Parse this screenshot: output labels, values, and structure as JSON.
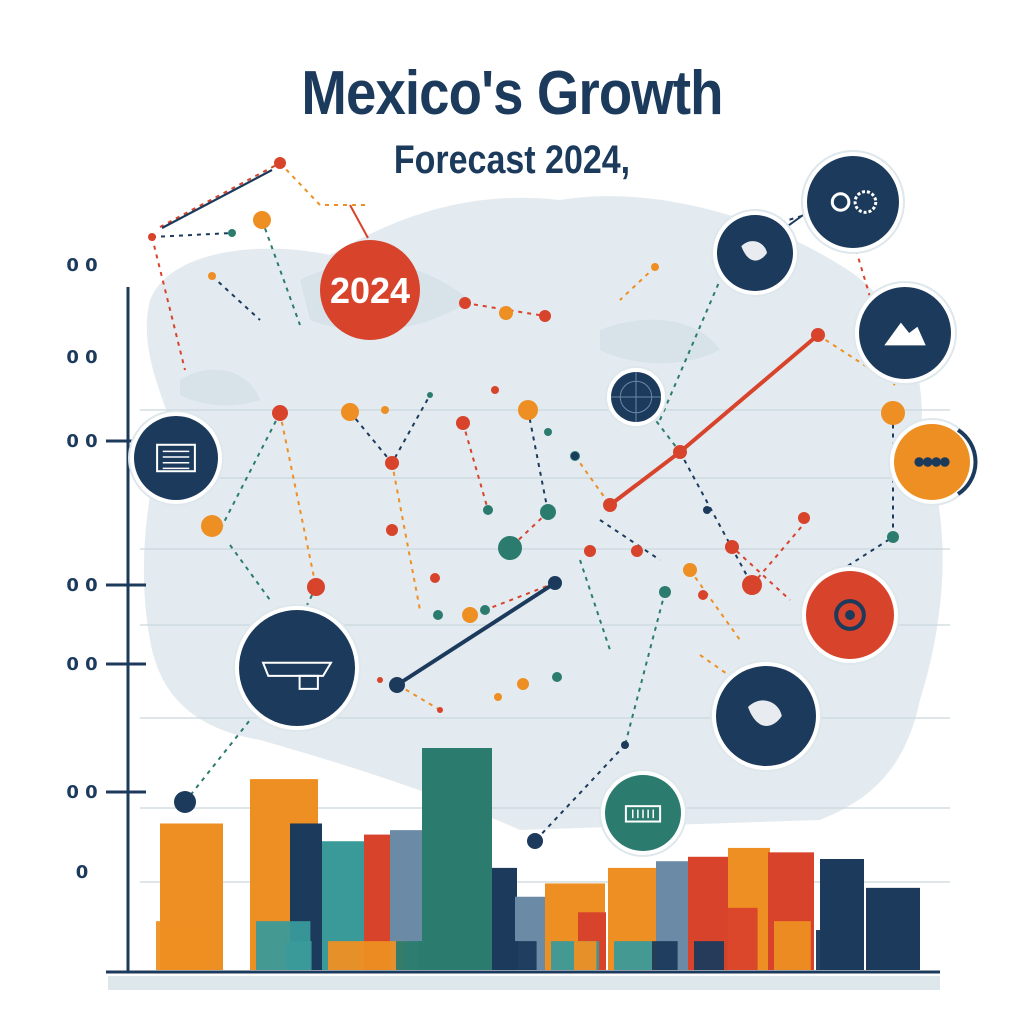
{
  "header": {
    "title": "Mexico's Growth",
    "subtitle": "Forecast 2024,"
  },
  "badge": {
    "label": "2024",
    "color": "#d8432b"
  },
  "colors": {
    "navy": "#1c3a5c",
    "orange": "#ee8f23",
    "red": "#d8432b",
    "teal": "#2b7c6e",
    "aqua": "#3a9a9a",
    "steel": "#6a8aa6",
    "map": "#dfe9ee"
  },
  "icons": [
    {
      "name": "document-icon",
      "fill": "#1c3a5c"
    },
    {
      "name": "aircraft-icon",
      "fill": "#1c3a5c"
    },
    {
      "name": "globe-americas-icon",
      "fill": "#1c3a5c"
    },
    {
      "name": "gears-icon",
      "fill": "#1c3a5c"
    },
    {
      "name": "mountain-chart-icon",
      "fill": "#1c3a5c"
    },
    {
      "name": "people-group-icon",
      "fill": "#ee8f23"
    },
    {
      "name": "target-icon",
      "fill": "#d8432b"
    },
    {
      "name": "world-map-icon",
      "fill": "#1c3a5c"
    },
    {
      "name": "factory-icon",
      "fill": "#2b7c6e"
    },
    {
      "name": "globe-grid-icon",
      "fill": "#1c3a5c"
    }
  ],
  "chart_data": {
    "type": "bar",
    "title": "Mexico's Growth",
    "subtitle": "Forecast 2024,",
    "xlabel": "",
    "ylabel": "",
    "y_tick_labels": [
      "0",
      "0 0",
      "0 0",
      "0 0",
      "0 0",
      "0 0",
      "0 0"
    ],
    "ylim": [
      0,
      100
    ],
    "grid": true,
    "legend": "none",
    "values": [
      66,
      86,
      66,
      58,
      61,
      63,
      100,
      46,
      33,
      39,
      26,
      46,
      49,
      51,
      55,
      53,
      50,
      37
    ],
    "bar_colors": [
      "#ee8f23",
      "#ee8f23",
      "#1c3a5c",
      "#3a9a9a",
      "#d8432b",
      "#6a8aa6",
      "#2b7c6e",
      "#1c3a5c",
      "#6a8aa6",
      "#ee8f23",
      "#d8432b",
      "#ee8f23",
      "#6a8aa6",
      "#d8432b",
      "#ee8f23",
      "#d8432b",
      "#1c3a5c",
      "#1c3a5c"
    ],
    "front_values": [
      22,
      22,
      13,
      13,
      13,
      13,
      13,
      13,
      13,
      13,
      13,
      13,
      13,
      13,
      28,
      22,
      18,
      13
    ],
    "front_colors": [
      "#ee8f23",
      "#3a9a9a",
      "#3a9a9a",
      "#ee8f23",
      "#ee8f23",
      "#2b7c6e",
      "#2b7c6e",
      "#1c3a5c",
      "#1c3a5c",
      "#3a9a9a",
      "#ee8f23",
      "#3a9a9a",
      "#1c3a5c",
      "#1c3a5c",
      "#d8432b",
      "#ee8f23",
      "#1c3a5c",
      "#1c3a5c"
    ],
    "trend_lines": [
      {
        "color": "#d8432b",
        "points": [
          [
            610,
            505
          ],
          [
            680,
            452
          ],
          [
            818,
            335
          ]
        ]
      },
      {
        "color": "#1c3a5c",
        "points": [
          [
            397,
            685
          ],
          [
            555,
            583
          ]
        ]
      }
    ]
  }
}
